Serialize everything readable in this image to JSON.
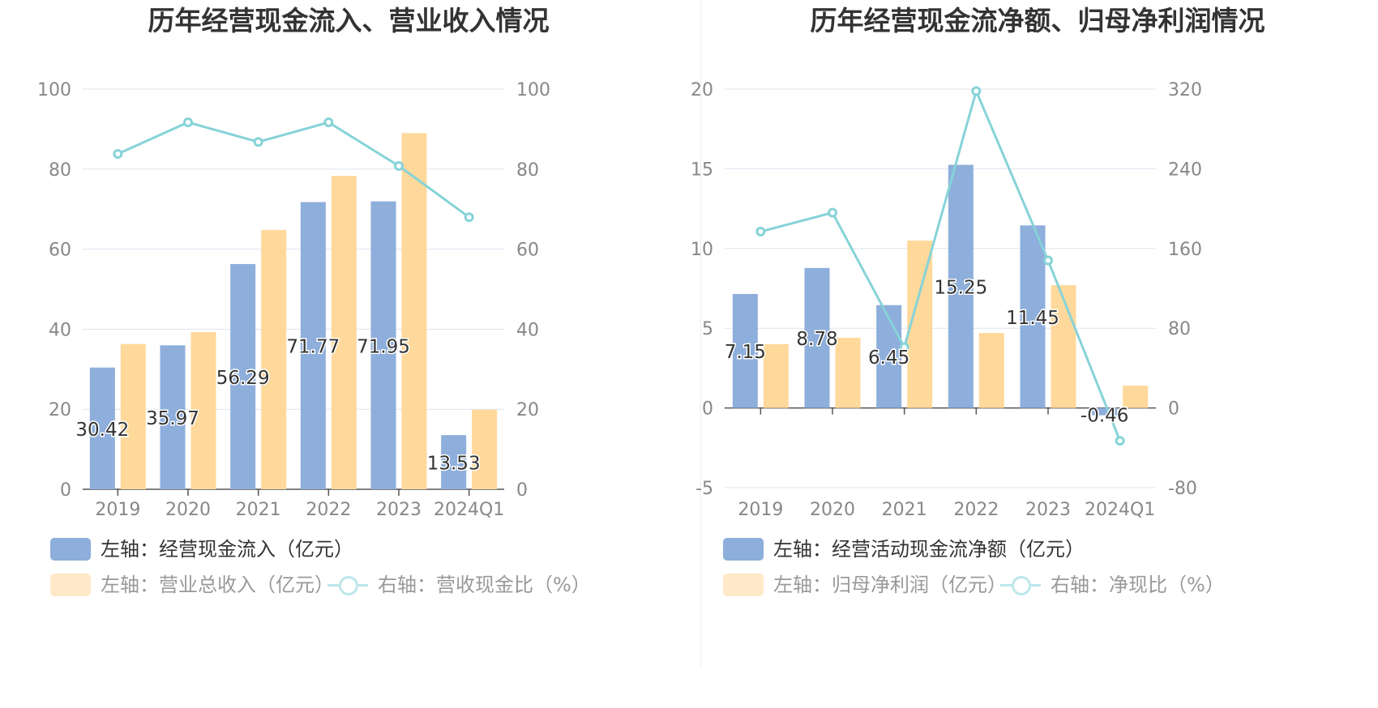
{
  "colors": {
    "bar_primary": "#8eaedb",
    "bar_secondary": "#ffd99b",
    "line": "#86d3d8",
    "grid": "#dde3ee",
    "axis_text": "#888888",
    "legend_text": "#333333",
    "legend_text_muted": "#999999",
    "swatch_secondary_muted": "#ffe9c8",
    "line_muted": "#bde7ea",
    "title_text": "#333333"
  },
  "left": {
    "title": "历年经营现金流入、营业收入情况",
    "legend": [
      {
        "label": "左轴：经营现金流入（亿元）",
        "kind": "bar",
        "color": "#8eaedb",
        "muted": false
      },
      {
        "label": "左轴：营业总收入（亿元）",
        "kind": "bar",
        "color": "#ffe9c8",
        "muted": true
      },
      {
        "label": "右轴：营收现金比（%）",
        "kind": "line",
        "color": "#bde7ea",
        "muted": true
      }
    ]
  },
  "right": {
    "title": "历年经营现金流净额、归母净利润情况",
    "legend": [
      {
        "label": "左轴：经营活动现金流净额（亿元）",
        "kind": "bar",
        "color": "#8eaedb",
        "muted": false
      },
      {
        "label": "左轴：归母净利润（亿元）",
        "kind": "bar",
        "color": "#ffe9c8",
        "muted": true
      },
      {
        "label": "右轴：净现比（%）",
        "kind": "line",
        "color": "#bde7ea",
        "muted": true
      }
    ]
  },
  "chart_data": [
    {
      "type": "bar",
      "title": "历年经营现金流入、营业收入情况",
      "categories": [
        "2019",
        "2020",
        "2021",
        "2022",
        "2023",
        "2024Q1"
      ],
      "y_left": {
        "min": 0,
        "max": 100,
        "ticks": [
          "0",
          "20",
          "40",
          "60",
          "80",
          "100"
        ]
      },
      "y_right": {
        "min": 0,
        "max": 100,
        "ticks": [
          "0",
          "20",
          "40",
          "60",
          "80",
          "100"
        ]
      },
      "series": [
        {
          "name": "左轴：经营现金流入（亿元）",
          "axis": "left",
          "type": "bar",
          "values": [
            30.42,
            35.97,
            56.29,
            71.77,
            71.95,
            13.53
          ],
          "labels": [
            "30.42",
            "35.97",
            "56.29",
            "71.77",
            "71.95",
            "13.53"
          ]
        },
        {
          "name": "左轴：营业总收入（亿元）",
          "axis": "left",
          "type": "bar",
          "values": [
            36.3,
            39.3,
            64.8,
            78.3,
            89.0,
            19.9
          ]
        },
        {
          "name": "右轴：营收现金比（%）",
          "axis": "right",
          "type": "line",
          "values": [
            83.8,
            91.7,
            86.8,
            91.7,
            80.8,
            68.0
          ]
        }
      ],
      "grid": true,
      "legend_position": "bottom-left"
    },
    {
      "type": "bar",
      "title": "历年经营现金流净额、归母净利润情况",
      "categories": [
        "2019",
        "2020",
        "2021",
        "2022",
        "2023",
        "2024Q1"
      ],
      "y_left": {
        "min": -5,
        "max": 20,
        "ticks": [
          "-5",
          "0",
          "5",
          "10",
          "15",
          "20"
        ]
      },
      "y_right": {
        "min": -80,
        "max": 320,
        "ticks": [
          "-80",
          "0",
          "80",
          "160",
          "240",
          "320"
        ]
      },
      "series": [
        {
          "name": "左轴：经营活动现金流净额（亿元）",
          "axis": "left",
          "type": "bar",
          "values": [
            7.15,
            8.78,
            6.45,
            15.25,
            11.45,
            -0.46
          ],
          "labels": [
            "7.15",
            "8.78",
            "6.45",
            "15.25",
            "11.45",
            "-0.46"
          ]
        },
        {
          "name": "左轴：归母净利润（亿元）",
          "axis": "left",
          "type": "bar",
          "values": [
            4.0,
            4.4,
            10.5,
            4.7,
            7.7,
            1.4
          ]
        },
        {
          "name": "右轴：净现比（%）",
          "axis": "right",
          "type": "line",
          "values": [
            177,
            196,
            61,
            318,
            148,
            -33
          ]
        }
      ],
      "grid": true,
      "legend_position": "bottom-left"
    }
  ]
}
